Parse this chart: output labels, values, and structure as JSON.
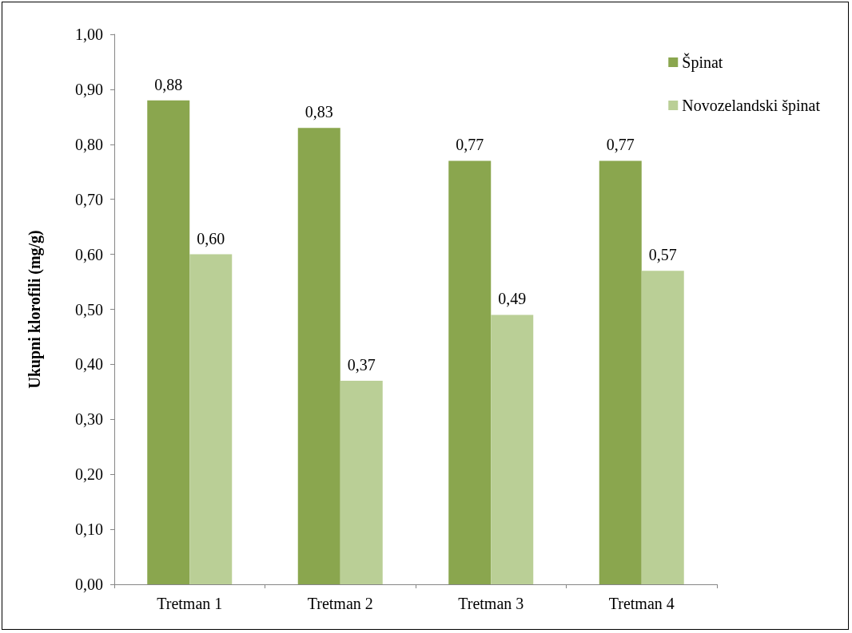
{
  "chart_data": {
    "type": "bar",
    "ylabel": "Ukupni klorofili (mg/g)",
    "categories": [
      "Tretman 1",
      "Tretman 2",
      "Tretman 3",
      "Tretman 4"
    ],
    "series": [
      {
        "name": "Špinat",
        "color": "#8aa64e",
        "values": [
          0.88,
          0.83,
          0.77,
          0.77
        ],
        "value_labels": [
          "0,88",
          "0,83",
          "0,77",
          "0,77"
        ]
      },
      {
        "name": "Novozelandski špinat",
        "color": "#bacf96",
        "values": [
          0.6,
          0.37,
          0.49,
          0.57
        ],
        "value_labels": [
          "0,60",
          "0,37",
          "0,49",
          "0,57"
        ]
      }
    ],
    "ylim": [
      0,
      1
    ],
    "yticks": [
      {
        "value": 0,
        "label": "0,00"
      },
      {
        "value": 0.1,
        "label": "0,10"
      },
      {
        "value": 0.2,
        "label": "0,20"
      },
      {
        "value": 0.3,
        "label": "0,30"
      },
      {
        "value": 0.4,
        "label": "0,40"
      },
      {
        "value": 0.5,
        "label": "0,50"
      },
      {
        "value": 0.6,
        "label": "0,60"
      },
      {
        "value": 0.7,
        "label": "0,70"
      },
      {
        "value": 0.8,
        "label": "0,80"
      },
      {
        "value": 0.9,
        "label": "0,90"
      },
      {
        "value": 1,
        "label": "1,00"
      }
    ],
    "grid": false,
    "legend": "top right"
  }
}
